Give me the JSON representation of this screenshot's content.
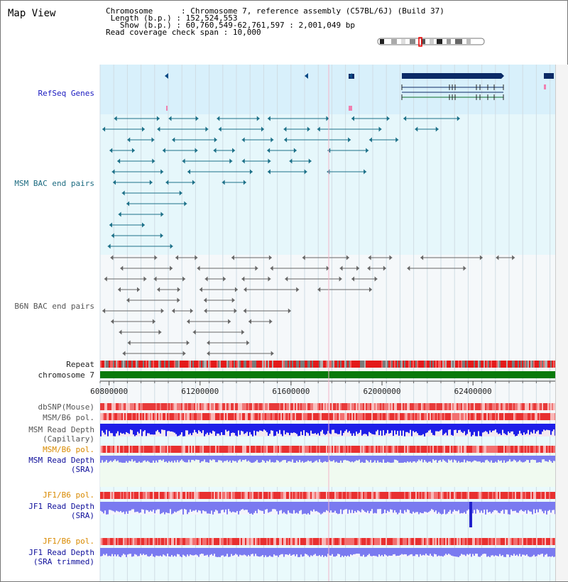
{
  "title": "Map View",
  "info": {
    "chromosome_key": "Chromosome",
    "chromosome_val": "Chromosome 7, reference assembly (C57BL/6J) (Build 37)",
    "length_key": "Length (b.p.)",
    "length_val": "152,524,553",
    "show_key": "Show (b.p.)",
    "show_val": "60,760,549-62,761,597 : 2,001,049 bp",
    "coverage_key": "Read coverage check span",
    "coverage_val": "10,000"
  },
  "tracks": {
    "refseq": "RefSeq Genes",
    "msm_bac": "MSM BAC end pairs",
    "b6n_bac": "B6N BAC end pairs",
    "repeat": "Repeat",
    "chromosome": "chromosome 7",
    "dbsnp": "dbSNP(Mouse)",
    "msm_b6_pol_1": "MSM/B6 pol.",
    "msm_depth_cap_1": "MSM Read Depth",
    "msm_depth_cap_2": "(Capillary)",
    "msm_b6_pol_2": "MSM/B6 pol.",
    "msm_depth_sra_1": "MSM Read Depth",
    "msm_depth_sra_2": "(SRA)",
    "jf1_b6_pol_1": "JF1/B6 pol.",
    "jf1_depth_sra_1": "JF1 Read Depth",
    "jf1_depth_sra_2": "(SRA)",
    "jf1_b6_pol_2": "JF1/B6 pol.",
    "jf1_depth_trim_1": "JF1 Read Depth",
    "jf1_depth_trim_2": "(SRA trimmed)"
  },
  "axis": {
    "range": [
      60760549,
      62761597
    ],
    "ticks": [
      "60800000",
      "61200000",
      "61600000",
      "62000000",
      "62400000"
    ],
    "tick_values": [
      60800000,
      61200000,
      61600000,
      62000000,
      62400000
    ]
  },
  "colors": {
    "refseq_bg": "#d8f0fb",
    "bac_bg": "#e6f7fb",
    "refseq_gene": "#0b2a66",
    "msm_bac": "#1c7088",
    "b6n_bac": "#666666",
    "chromosome": "#0a7a0a",
    "depth_dark": "#1f1fe8",
    "depth_light": "#7a7af0",
    "pol_red": "#e83030",
    "pol_pink": "#f8b0b0"
  }
}
